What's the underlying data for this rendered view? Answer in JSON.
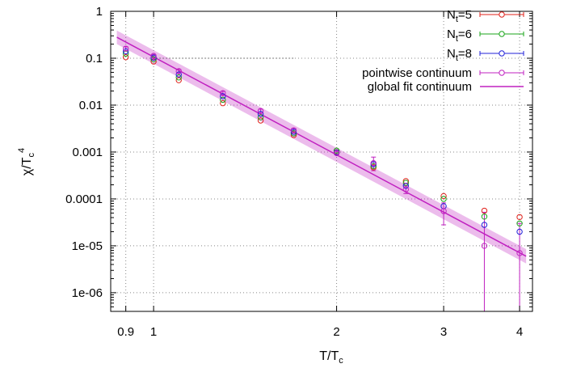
{
  "chart_data": {
    "type": "scatter",
    "title": "",
    "xlabel": {
      "main": "T/T",
      "sub": "c"
    },
    "ylabel": {
      "main": "χ/T",
      "sub": "c",
      "sup": "4"
    },
    "x_scale": "log",
    "y_scale": "log",
    "xlim": [
      0.85,
      4.2
    ],
    "ylim": [
      4e-07,
      1
    ],
    "grid": true,
    "legend_position": "top-right",
    "x_ticks": [
      {
        "value": 0.9,
        "label": "0.9"
      },
      {
        "value": 1,
        "label": "1"
      },
      {
        "value": 2,
        "label": "2"
      },
      {
        "value": 3,
        "label": "3"
      },
      {
        "value": 4,
        "label": "4"
      }
    ],
    "y_ticks": [
      {
        "value": 1,
        "label": "1"
      },
      {
        "value": 0.1,
        "label": "0.1"
      },
      {
        "value": 0.01,
        "label": "0.01"
      },
      {
        "value": 0.001,
        "label": "0.001"
      },
      {
        "value": 0.0001,
        "label": "0.0001"
      },
      {
        "value": 1e-05,
        "label": "1e-05"
      },
      {
        "value": 1e-06,
        "label": "1e-06"
      }
    ],
    "series": [
      {
        "name": {
          "main": "N",
          "sub": "t",
          "rest": "=5"
        },
        "color": "#e0201a",
        "marker": "circle",
        "x": [
          0.9,
          1.0,
          1.1,
          1.3,
          1.5,
          1.7,
          2.0,
          2.3,
          2.6,
          3.0,
          3.5,
          4.0
        ],
        "y": [
          0.105,
          0.085,
          0.034,
          0.011,
          0.0047,
          0.0023,
          0.00099,
          0.00047,
          0.00024,
          0.000115,
          5.6e-05,
          4.1e-05
        ]
      },
      {
        "name": {
          "main": "N",
          "sub": "t",
          "rest": "=6"
        },
        "color": "#1aa61a",
        "marker": "circle",
        "x": [
          0.9,
          1.0,
          1.1,
          1.3,
          1.5,
          1.7,
          2.0,
          2.3,
          2.6,
          3.0,
          3.5,
          4.0
        ],
        "y": [
          0.125,
          0.095,
          0.039,
          0.013,
          0.0055,
          0.0025,
          0.00107,
          0.0005,
          0.00022,
          0.0001,
          4.2e-05,
          3e-05
        ]
      },
      {
        "name": {
          "main": "N",
          "sub": "t",
          "rest": "=8"
        },
        "color": "#2020d8",
        "marker": "circle",
        "x": [
          0.9,
          1.0,
          1.1,
          1.3,
          1.5,
          1.7,
          2.0,
          2.3,
          2.6,
          3.0,
          3.5,
          4.0
        ],
        "y": [
          0.14,
          0.103,
          0.045,
          0.0155,
          0.0065,
          0.0027,
          0.00098,
          0.00055,
          0.00019,
          7e-05,
          2.8e-05,
          2e-05
        ]
      },
      {
        "name": {
          "main": "pointwise continuum"
        },
        "color": "#c020c0",
        "marker": "circle",
        "x": [
          0.9,
          1.0,
          1.1,
          1.3,
          1.5,
          1.7,
          2.0,
          2.3,
          2.6,
          3.0,
          3.5,
          4.0
        ],
        "y": [
          0.16,
          0.112,
          0.053,
          0.018,
          0.0075,
          0.0029,
          0.00095,
          0.00058,
          0.00016,
          5.5e-05,
          1e-05,
          7e-06
        ],
        "y_err_low": [
          0.145,
          0.105,
          0.048,
          0.0163,
          0.0068,
          0.0026,
          0.00088,
          0.0004,
          0.00013,
          2.8e-05,
          4e-07,
          4e-07
        ],
        "y_err_high": [
          0.175,
          0.12,
          0.058,
          0.0197,
          0.0082,
          0.0032,
          0.00103,
          0.00078,
          0.00019,
          8.2e-05,
          5.2e-05,
          3e-05
        ]
      },
      {
        "name": {
          "main": "global fit continuum"
        },
        "color": "#c020c0",
        "type": "line",
        "x": [
          0.87,
          4.1
        ],
        "y": [
          0.28,
          6e-06
        ],
        "band_low": [
          0.2,
          4.2e-06
        ],
        "band_high": [
          0.39,
          8.5e-06
        ]
      }
    ],
    "annotations": [
      {
        "type": "dotted-segment",
        "x": [
          1.0,
          1.7
        ],
        "y": [
          0.1,
          0.1
        ]
      }
    ]
  }
}
